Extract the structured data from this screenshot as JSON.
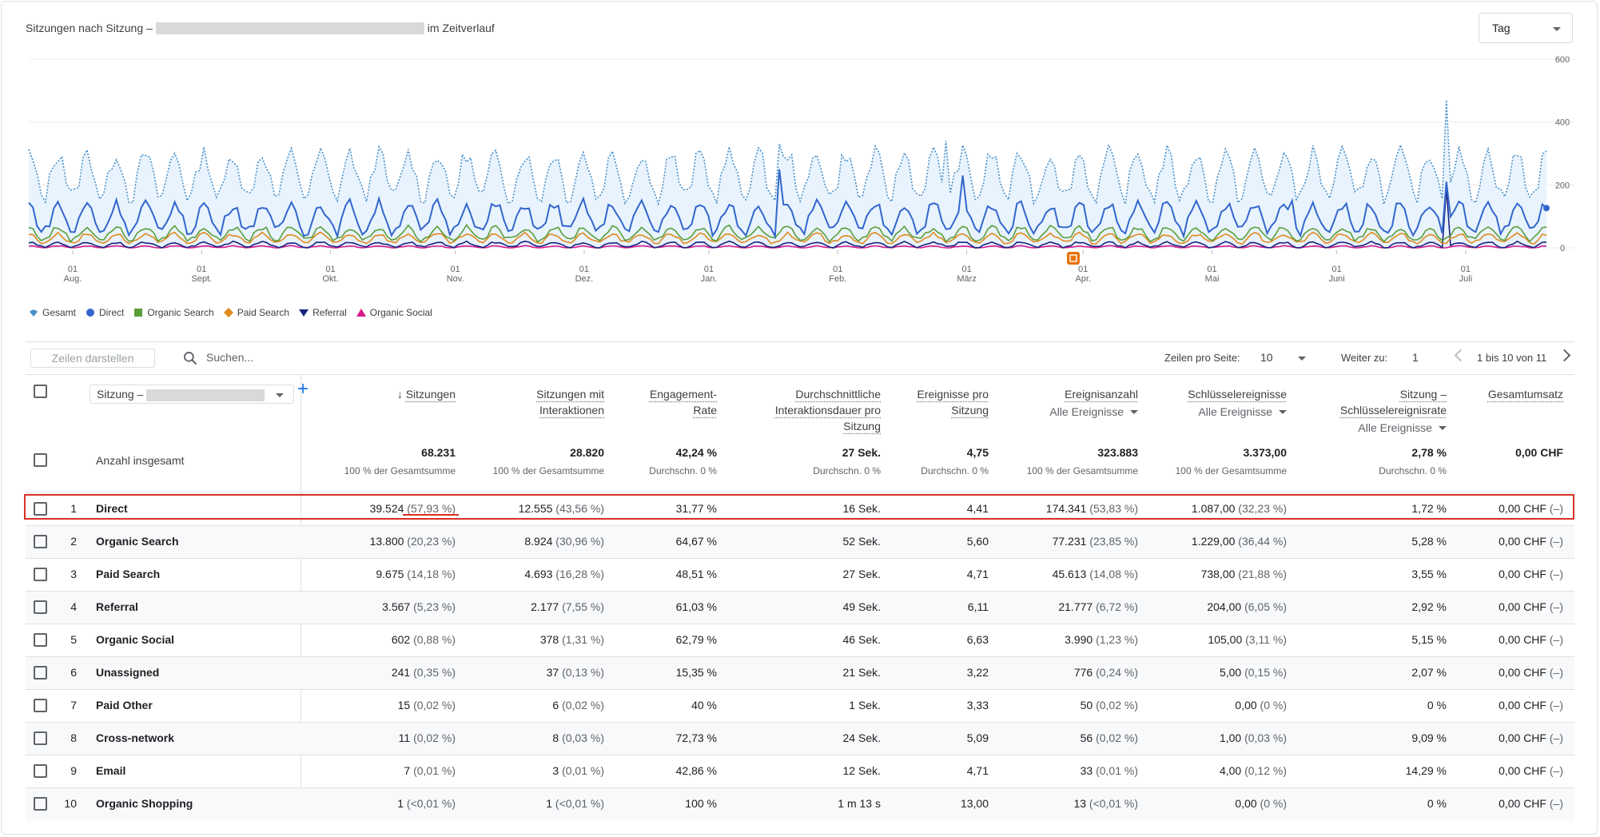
{
  "header": {
    "title_prefix": "Sitzungen nach Sitzung –",
    "title_suffix": "im Zeitverlauf",
    "granularity": "Tag"
  },
  "colors": {
    "gesamt": "#4a90c8",
    "direct": "#3366cc",
    "organic_search": "#5a9e3a",
    "paid_search": "#e08a1e",
    "referral": "#1a237e",
    "organic_social": "#d81b8c",
    "fill": "#e8f3fd"
  },
  "chart_data": {
    "type": "line",
    "y_ticks": [
      "600",
      "400",
      "200",
      "0"
    ],
    "ylim": [
      0,
      600
    ],
    "x_ticks": [
      [
        "01",
        "Aug."
      ],
      [
        "01",
        "Sept."
      ],
      [
        "01",
        "Okt."
      ],
      [
        "01",
        "Nov."
      ],
      [
        "01",
        "Dez."
      ],
      [
        "01",
        "Jan."
      ],
      [
        "01",
        "Feb."
      ],
      [
        "01",
        "März"
      ],
      [
        "01",
        "Apr."
      ],
      [
        "01",
        "Mai"
      ],
      [
        "01",
        "Juni"
      ],
      [
        "01",
        "Juli"
      ]
    ],
    "days": 365,
    "series": [
      {
        "name": "Gesamt",
        "key": "gesamt",
        "style": "dotted",
        "base": 230,
        "amp": 70,
        "spikes": [
          [
            8,
            290
          ],
          [
            180,
            330
          ],
          [
            220,
            340
          ],
          [
            340,
            470
          ],
          [
            300,
            250
          ]
        ]
      },
      {
        "name": "Direct",
        "key": "direct",
        "style": "solid",
        "base": 95,
        "amp": 45,
        "spikes": [
          [
            180,
            250
          ],
          [
            224,
            230
          ],
          [
            340,
            210
          ],
          [
            303,
            150
          ]
        ]
      },
      {
        "name": "Organic Search",
        "key": "organic_search",
        "style": "solid",
        "base": 45,
        "amp": 20,
        "spikes": []
      },
      {
        "name": "Paid Search",
        "key": "paid_search",
        "style": "solid",
        "base": 30,
        "amp": 14,
        "spikes": []
      },
      {
        "name": "Referral",
        "key": "referral",
        "style": "solid",
        "base": 10,
        "amp": 8,
        "spikes": [
          [
            340,
            190
          ]
        ]
      },
      {
        "name": "Organic Social",
        "key": "organic_social",
        "style": "solid",
        "base": 3,
        "amp": 3,
        "spikes": []
      }
    ]
  },
  "toolbar": {
    "rows_button": "Zeilen darstellen",
    "search_placeholder": "Suchen...",
    "rows_per_page_label": "Zeilen pro Seite:",
    "rows_per_page_value": "10",
    "goto_label": "Weiter zu:",
    "goto_value": "1",
    "pagination": "1 bis 10 von 11"
  },
  "columns": {
    "dimension": "Sitzung –",
    "sessions": "Sitzungen",
    "engaged_1": "Sitzungen mit",
    "engaged_2": "Interaktionen",
    "er_1": "Engagement-",
    "er_2": "Rate",
    "dur_1": "Durchschnittliche",
    "dur_2": "Interaktionsdauer pro",
    "dur_3": "Sitzung",
    "eps_1": "Ereignisse pro",
    "eps_2": "Sitzung",
    "events": "Ereignisanzahl",
    "events_sub": "Alle Ereignisse",
    "key": "Schlüsselereignisse",
    "key_sub": "Alle Ereignisse",
    "rate_1": "Sitzung –",
    "rate_2": "Schlüsselereignisrate",
    "rate_sub": "Alle Ereignisse",
    "revenue": "Gesamtumsatz"
  },
  "totals": {
    "label": "Anzahl insgesamt",
    "sessions": "68.231",
    "sessions_sub": "100 % der Gesamtsumme",
    "engaged": "28.820",
    "engaged_sub": "100 % der Gesamtsumme",
    "er": "42,24 %",
    "er_sub": "Durchschn. 0 %",
    "dur": "27 Sek.",
    "dur_sub": "Durchschn. 0 %",
    "eps": "4,75",
    "eps_sub": "Durchschn. 0 %",
    "events": "323.883",
    "events_sub": "100 % der Gesamtsumme",
    "key": "3.373,00",
    "key_sub": "100 % der Gesamtsumme",
    "rate": "2,78 %",
    "rate_sub": "Durchschn. 0 %",
    "revenue": "0,00 CHF"
  },
  "rows": [
    {
      "n": "1",
      "name": "Direct",
      "s": "39.524",
      "sp": "(57,93 %)",
      "e": "12.555",
      "ep": "(43,56 %)",
      "er": "31,77 %",
      "d": "16 Sek.",
      "eps": "4,41",
      "ev": "174.341",
      "evp": "(53,83 %)",
      "k": "1.087,00",
      "kp": "(32,23 %)",
      "r": "1,72 %",
      "rev": "0,00 CHF",
      "revp": "(–)"
    },
    {
      "n": "2",
      "name": "Organic Search",
      "s": "13.800",
      "sp": "(20,23 %)",
      "e": "8.924",
      "ep": "(30,96 %)",
      "er": "64,67 %",
      "d": "52 Sek.",
      "eps": "5,60",
      "ev": "77.231",
      "evp": "(23,85 %)",
      "k": "1.229,00",
      "kp": "(36,44 %)",
      "r": "5,28 %",
      "rev": "0,00 CHF",
      "revp": "(–)"
    },
    {
      "n": "3",
      "name": "Paid Search",
      "s": "9.675",
      "sp": "(14,18 %)",
      "e": "4.693",
      "ep": "(16,28 %)",
      "er": "48,51 %",
      "d": "27 Sek.",
      "eps": "4,71",
      "ev": "45.613",
      "evp": "(14,08 %)",
      "k": "738,00",
      "kp": "(21,88 %)",
      "r": "3,55 %",
      "rev": "0,00 CHF",
      "revp": "(–)"
    },
    {
      "n": "4",
      "name": "Referral",
      "s": "3.567",
      "sp": "(5,23 %)",
      "e": "2.177",
      "ep": "(7,55 %)",
      "er": "61,03 %",
      "d": "49 Sek.",
      "eps": "6,11",
      "ev": "21.777",
      "evp": "(6,72 %)",
      "k": "204,00",
      "kp": "(6,05 %)",
      "r": "2,92 %",
      "rev": "0,00 CHF",
      "revp": "(–)"
    },
    {
      "n": "5",
      "name": "Organic Social",
      "s": "602",
      "sp": "(0,88 %)",
      "e": "378",
      "ep": "(1,31 %)",
      "er": "62,79 %",
      "d": "46 Sek.",
      "eps": "6,63",
      "ev": "3.990",
      "evp": "(1,23 %)",
      "k": "105,00",
      "kp": "(3,11 %)",
      "r": "5,15 %",
      "rev": "0,00 CHF",
      "revp": "(–)"
    },
    {
      "n": "6",
      "name": "Unassigned",
      "s": "241",
      "sp": "(0,35 %)",
      "e": "37",
      "ep": "(0,13 %)",
      "er": "15,35 %",
      "d": "21 Sek.",
      "eps": "3,22",
      "ev": "776",
      "evp": "(0,24 %)",
      "k": "5,00",
      "kp": "(0,15 %)",
      "r": "2,07 %",
      "rev": "0,00 CHF",
      "revp": "(–)"
    },
    {
      "n": "7",
      "name": "Paid Other",
      "s": "15",
      "sp": "(0,02 %)",
      "e": "6",
      "ep": "(0,02 %)",
      "er": "40 %",
      "d": "1 Sek.",
      "eps": "3,33",
      "ev": "50",
      "evp": "(0,02 %)",
      "k": "0,00",
      "kp": "(0 %)",
      "r": "0 %",
      "rev": "0,00 CHF",
      "revp": "(–)"
    },
    {
      "n": "8",
      "name": "Cross-network",
      "s": "11",
      "sp": "(0,02 %)",
      "e": "8",
      "ep": "(0,03 %)",
      "er": "72,73 %",
      "d": "24 Sek.",
      "eps": "5,09",
      "ev": "56",
      "evp": "(0,02 %)",
      "k": "1,00",
      "kp": "(0,03 %)",
      "r": "9,09 %",
      "rev": "0,00 CHF",
      "revp": "(–)"
    },
    {
      "n": "9",
      "name": "Email",
      "s": "7",
      "sp": "(0,01 %)",
      "e": "3",
      "ep": "(0,01 %)",
      "er": "42,86 %",
      "d": "12 Sek.",
      "eps": "4,71",
      "ev": "33",
      "evp": "(0,01 %)",
      "k": "4,00",
      "kp": "(0,12 %)",
      "r": "14,29 %",
      "rev": "0,00 CHF",
      "revp": "(–)"
    },
    {
      "n": "10",
      "name": "Organic Shopping",
      "s": "1",
      "sp": "(<0,01 %)",
      "e": "1",
      "ep": "(<0,01 %)",
      "er": "100 %",
      "d": "1 m 13 s",
      "eps": "13,00",
      "ev": "13",
      "evp": "(<0,01 %)",
      "k": "0,00",
      "kp": "(0 %)",
      "r": "0 %",
      "rev": "0,00 CHF",
      "revp": "(–)"
    }
  ]
}
